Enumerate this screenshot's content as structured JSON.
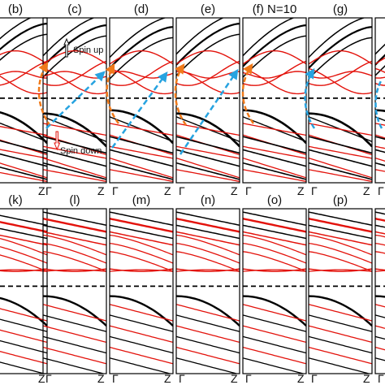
{
  "colors": {
    "spin_up": "#000000",
    "spin_down": "#e3120b",
    "fermi": "#000000",
    "orange_arrow": "#f07a1a",
    "blue_arrow": "#27a3e0",
    "background": "#ffffff"
  },
  "top_row": [
    {
      "label": "(b)"
    },
    {
      "label": "(c)"
    },
    {
      "label": "(d)"
    },
    {
      "label": "(e)"
    },
    {
      "label": "(f) N=10"
    },
    {
      "label": "(g)"
    },
    {
      "label": ""
    }
  ],
  "bottom_row": [
    {
      "label": "(k)"
    },
    {
      "label": "(l)"
    },
    {
      "label": "(m)"
    },
    {
      "label": "(n)"
    },
    {
      "label": "(o)"
    },
    {
      "label": "(p)"
    },
    {
      "label": ""
    }
  ],
  "kpoints": {
    "gamma": "Γ",
    "z": "Z"
  },
  "annotations": {
    "spin_up": "Spin up",
    "spin_down": "Spin down"
  },
  "icons": {
    "up": "hollow-up-arrow-icon",
    "down": "hollow-down-arrow-icon"
  }
}
